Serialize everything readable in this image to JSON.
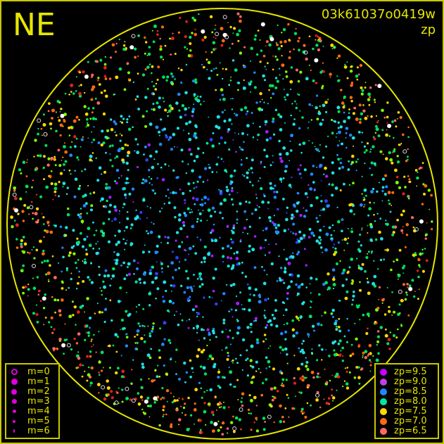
{
  "header": {
    "direction": "NE",
    "image_id": "03k61037o0419w",
    "mode": "zp"
  },
  "colors": {
    "frame": "#c8c800",
    "horizon": "#e6e600",
    "text": "#e6e600",
    "magnitude_symbol": "#e000e0"
  },
  "magnitude_legend": [
    {
      "label": "m=0",
      "symbol": "ring"
    },
    {
      "label": "m=1",
      "symbol": "dot"
    },
    {
      "label": "m=2",
      "symbol": "dot"
    },
    {
      "label": "m=3",
      "symbol": "dot"
    },
    {
      "label": "m=4",
      "symbol": "dot"
    },
    {
      "label": "m=5",
      "symbol": "dot"
    },
    {
      "label": "m=6",
      "symbol": "dot"
    }
  ],
  "zp_legend": [
    {
      "label": "zp=9.5",
      "color": "#c800ff"
    },
    {
      "label": "zp=9.0",
      "color": "#c040e8"
    },
    {
      "label": "zp=8.5",
      "color": "#2088ff"
    },
    {
      "label": "zp=8.0",
      "color": "#00e8a0"
    },
    {
      "label": "zp=7.5",
      "color": "#ffd800"
    },
    {
      "label": "zp=7.0",
      "color": "#ff6a10"
    },
    {
      "label": "zp=6.5",
      "color": "#ff6868"
    }
  ]
}
